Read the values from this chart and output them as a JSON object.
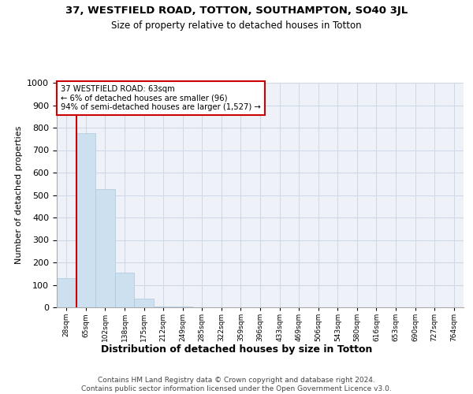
{
  "title": "37, WESTFIELD ROAD, TOTTON, SOUTHAMPTON, SO40 3JL",
  "subtitle": "Size of property relative to detached houses in Totton",
  "xlabel": "Distribution of detached houses by size in Totton",
  "ylabel": "Number of detached properties",
  "footer_line1": "Contains HM Land Registry data © Crown copyright and database right 2024.",
  "footer_line2": "Contains public sector information licensed under the Open Government Licence v3.0.",
  "bins": [
    "28sqm",
    "65sqm",
    "102sqm",
    "138sqm",
    "175sqm",
    "212sqm",
    "249sqm",
    "285sqm",
    "322sqm",
    "359sqm",
    "396sqm",
    "433sqm",
    "469sqm",
    "506sqm",
    "543sqm",
    "580sqm",
    "616sqm",
    "653sqm",
    "690sqm",
    "727sqm",
    "764sqm"
  ],
  "bar_values": [
    130,
    775,
    525,
    155,
    40,
    5,
    2,
    1,
    0,
    0,
    0,
    0,
    0,
    0,
    0,
    0,
    0,
    0,
    0,
    0,
    0
  ],
  "bar_color": "#cce0f0",
  "bar_edge_color": "#aac8e0",
  "grid_color": "#d0d8e8",
  "background_color": "#eef2f8",
  "annotation_line1": "37 WESTFIELD ROAD: 63sqm",
  "annotation_line2": "← 6% of detached houses are smaller (96)",
  "annotation_line3": "94% of semi-detached houses are larger (1,527) →",
  "annotation_box_color": "#cc0000",
  "property_line_x": 0.5,
  "ylim": [
    0,
    1000
  ],
  "yticks": [
    0,
    100,
    200,
    300,
    400,
    500,
    600,
    700,
    800,
    900,
    1000
  ]
}
